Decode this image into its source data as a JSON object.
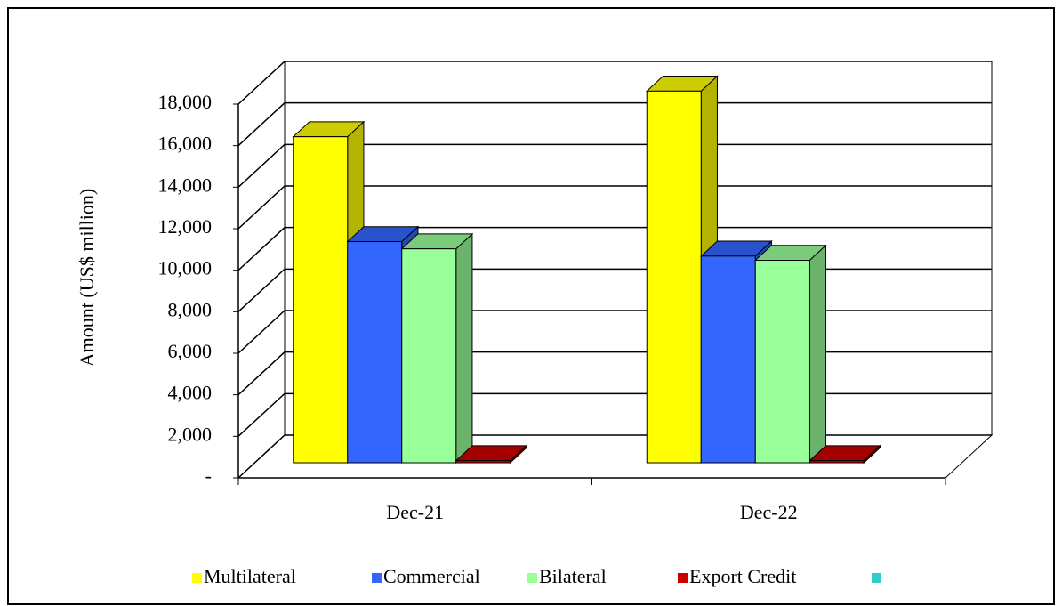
{
  "chart_data": {
    "type": "bar3d",
    "y_axis_label": "Amount  (US$ million)",
    "categories": [
      "Dec-21",
      "Dec-22"
    ],
    "series": [
      {
        "name": "Multilateral",
        "color": "#ffff00",
        "values": [
          15700,
          17900
        ]
      },
      {
        "name": "Commercial",
        "color": "#3366ff",
        "values": [
          10650,
          9950
        ]
      },
      {
        "name": "Bilateral",
        "color": "#99ff99",
        "values": [
          10300,
          9750
        ]
      },
      {
        "name": "Export Credit",
        "color": "#cc0000",
        "values": [
          100,
          100
        ]
      },
      {
        "name": null,
        "color": "#33cccc",
        "values": [
          null,
          null
        ]
      }
    ],
    "ylim": [
      0,
      18000
    ],
    "yticks": [
      {
        "value": 0,
        "label": "-"
      },
      {
        "value": 2000,
        "label": "2,000"
      },
      {
        "value": 4000,
        "label": "4,000"
      },
      {
        "value": 6000,
        "label": "6,000"
      },
      {
        "value": 8000,
        "label": "8,000"
      },
      {
        "value": 10000,
        "label": "10,000"
      },
      {
        "value": 12000,
        "label": "12,000"
      },
      {
        "value": 14000,
        "label": "14,000"
      },
      {
        "value": 16000,
        "label": "16,000"
      },
      {
        "value": 18000,
        "label": "18,000"
      }
    ],
    "grid": true,
    "legend": "bottom"
  }
}
